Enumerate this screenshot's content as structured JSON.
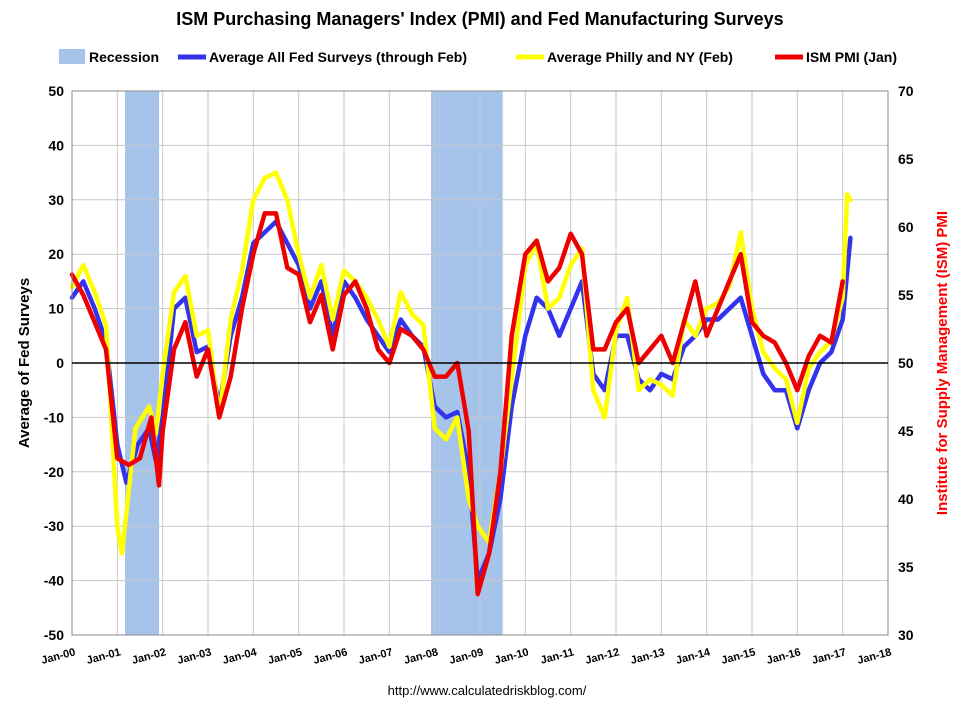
{
  "chart_data": {
    "type": "line",
    "title": "ISM Purchasing Managers' Index (PMI) and Fed Manufacturing Surveys",
    "footer": "http://www.calculatedriskblog.com/",
    "ylabel_left": "Average of Fed Surveys",
    "ylabel_right": "Institute for Supply Management (ISM) PMI",
    "ylim_left": [
      -50,
      50
    ],
    "ylim_right": [
      30,
      70
    ],
    "yticks_left": [
      "50",
      "40",
      "30",
      "20",
      "10",
      "0",
      "-10",
      "-20",
      "-30",
      "-40",
      "-50"
    ],
    "yticks_right": [
      "70",
      "65",
      "60",
      "55",
      "50",
      "45",
      "40",
      "35",
      "30"
    ],
    "xrange_years": [
      2000,
      2018
    ],
    "xticks": [
      "Jan-00",
      "Jan-01",
      "Jan-02",
      "Jan-03",
      "Jan-04",
      "Jan-05",
      "Jan-06",
      "Jan-07",
      "Jan-08",
      "Jan-09",
      "Jan-10",
      "Jan-11",
      "Jan-12",
      "Jan-13",
      "Jan-14",
      "Jan-15",
      "Jan-16",
      "Jan-17",
      "Jan-18"
    ],
    "grid": true,
    "legend": [
      {
        "key": "recession",
        "label": "Recession",
        "color": "#a6c3ea"
      },
      {
        "key": "fed",
        "label": "Average All Fed Surveys (through Feb)",
        "color": "#3333ee"
      },
      {
        "key": "philly",
        "label": "Average Philly and NY (Feb)",
        "color": "#ffff00"
      },
      {
        "key": "ism",
        "label": "ISM PMI (Jan)",
        "color": "#ee0000"
      }
    ],
    "recessions": [
      {
        "start": 2001.17,
        "end": 2001.92
      },
      {
        "start": 2007.92,
        "end": 2009.5
      }
    ],
    "series": [
      {
        "name": "Average All Fed Surveys (through Feb)",
        "axis": "left",
        "color": "#3333ee",
        "points": [
          [
            2000.0,
            12
          ],
          [
            2000.25,
            15
          ],
          [
            2000.5,
            10
          ],
          [
            2000.75,
            4
          ],
          [
            2001.0,
            -15
          ],
          [
            2001.2,
            -22
          ],
          [
            2001.45,
            -15
          ],
          [
            2001.7,
            -12
          ],
          [
            2001.85,
            -18
          ],
          [
            2002.0,
            -10
          ],
          [
            2002.25,
            10
          ],
          [
            2002.5,
            12
          ],
          [
            2002.75,
            2
          ],
          [
            2003.0,
            3
          ],
          [
            2003.25,
            -8
          ],
          [
            2003.5,
            5
          ],
          [
            2003.75,
            12
          ],
          [
            2004.0,
            22
          ],
          [
            2004.25,
            24
          ],
          [
            2004.5,
            26
          ],
          [
            2004.75,
            22
          ],
          [
            2005.0,
            18
          ],
          [
            2005.25,
            10
          ],
          [
            2005.5,
            15
          ],
          [
            2005.75,
            5
          ],
          [
            2006.0,
            15
          ],
          [
            2006.25,
            12
          ],
          [
            2006.5,
            8
          ],
          [
            2006.75,
            5
          ],
          [
            2007.0,
            2
          ],
          [
            2007.25,
            8
          ],
          [
            2007.5,
            5
          ],
          [
            2007.75,
            3
          ],
          [
            2008.0,
            -8
          ],
          [
            2008.25,
            -10
          ],
          [
            2008.5,
            -9
          ],
          [
            2008.75,
            -20
          ],
          [
            2008.95,
            -40
          ],
          [
            2009.2,
            -35
          ],
          [
            2009.45,
            -25
          ],
          [
            2009.7,
            -8
          ],
          [
            2010.0,
            5
          ],
          [
            2010.25,
            12
          ],
          [
            2010.5,
            10
          ],
          [
            2010.75,
            5
          ],
          [
            2011.0,
            10
          ],
          [
            2011.25,
            15
          ],
          [
            2011.5,
            -2
          ],
          [
            2011.75,
            -5
          ],
          [
            2012.0,
            5
          ],
          [
            2012.25,
            5
          ],
          [
            2012.5,
            -3
          ],
          [
            2012.75,
            -5
          ],
          [
            2013.0,
            -2
          ],
          [
            2013.25,
            -3
          ],
          [
            2013.5,
            3
          ],
          [
            2013.75,
            5
          ],
          [
            2014.0,
            8
          ],
          [
            2014.25,
            8
          ],
          [
            2014.5,
            10
          ],
          [
            2014.75,
            12
          ],
          [
            2015.0,
            5
          ],
          [
            2015.25,
            -2
          ],
          [
            2015.5,
            -5
          ],
          [
            2015.75,
            -5
          ],
          [
            2016.0,
            -12
          ],
          [
            2016.25,
            -5
          ],
          [
            2016.5,
            0
          ],
          [
            2016.75,
            2
          ],
          [
            2017.0,
            8
          ],
          [
            2017.17,
            23
          ]
        ]
      },
      {
        "name": "Average Philly and NY (Feb)",
        "axis": "left",
        "color": "#ffff00",
        "points": [
          [
            2000.0,
            14
          ],
          [
            2000.25,
            18
          ],
          [
            2000.5,
            13
          ],
          [
            2000.75,
            7
          ],
          [
            2001.0,
            -30
          ],
          [
            2001.1,
            -35
          ],
          [
            2001.4,
            -12
          ],
          [
            2001.7,
            -8
          ],
          [
            2001.85,
            -13
          ],
          [
            2002.0,
            -2
          ],
          [
            2002.25,
            13
          ],
          [
            2002.5,
            16
          ],
          [
            2002.75,
            5
          ],
          [
            2003.0,
            6
          ],
          [
            2003.25,
            -10
          ],
          [
            2003.5,
            8
          ],
          [
            2003.75,
            17
          ],
          [
            2004.0,
            30
          ],
          [
            2004.25,
            34
          ],
          [
            2004.5,
            35
          ],
          [
            2004.75,
            30
          ],
          [
            2005.0,
            20
          ],
          [
            2005.25,
            12
          ],
          [
            2005.5,
            18
          ],
          [
            2005.75,
            8
          ],
          [
            2006.0,
            17
          ],
          [
            2006.25,
            15
          ],
          [
            2006.5,
            12
          ],
          [
            2006.75,
            8
          ],
          [
            2007.0,
            3
          ],
          [
            2007.25,
            13
          ],
          [
            2007.5,
            9
          ],
          [
            2007.75,
            7
          ],
          [
            2008.0,
            -12
          ],
          [
            2008.25,
            -14
          ],
          [
            2008.5,
            -10
          ],
          [
            2008.75,
            -25
          ],
          [
            2008.95,
            -30
          ],
          [
            2009.2,
            -33
          ],
          [
            2009.45,
            -20
          ],
          [
            2009.7,
            -3
          ],
          [
            2010.0,
            18
          ],
          [
            2010.25,
            22
          ],
          [
            2010.5,
            10
          ],
          [
            2010.75,
            12
          ],
          [
            2011.0,
            18
          ],
          [
            2011.25,
            21
          ],
          [
            2011.5,
            -5
          ],
          [
            2011.75,
            -10
          ],
          [
            2012.0,
            6
          ],
          [
            2012.25,
            12
          ],
          [
            2012.5,
            -5
          ],
          [
            2012.75,
            -3
          ],
          [
            2013.0,
            -4
          ],
          [
            2013.25,
            -6
          ],
          [
            2013.5,
            8
          ],
          [
            2013.75,
            5
          ],
          [
            2014.0,
            10
          ],
          [
            2014.25,
            11
          ],
          [
            2014.5,
            14
          ],
          [
            2014.75,
            24
          ],
          [
            2015.0,
            10
          ],
          [
            2015.25,
            2
          ],
          [
            2015.5,
            -1
          ],
          [
            2015.75,
            -3
          ],
          [
            2016.0,
            -11
          ],
          [
            2016.25,
            -1
          ],
          [
            2016.5,
            2
          ],
          [
            2016.75,
            4
          ],
          [
            2017.0,
            12
          ],
          [
            2017.1,
            31
          ],
          [
            2017.17,
            30
          ]
        ]
      },
      {
        "name": "ISM PMI (Jan)",
        "axis": "right",
        "color": "#ee0000",
        "points": [
          [
            2000.0,
            56.5
          ],
          [
            2000.25,
            55
          ],
          [
            2000.5,
            53
          ],
          [
            2000.75,
            51
          ],
          [
            2001.0,
            43
          ],
          [
            2001.25,
            42.5
          ],
          [
            2001.5,
            43
          ],
          [
            2001.75,
            46
          ],
          [
            2001.92,
            41
          ],
          [
            2002.0,
            45
          ],
          [
            2002.25,
            51
          ],
          [
            2002.5,
            53
          ],
          [
            2002.75,
            49
          ],
          [
            2003.0,
            51
          ],
          [
            2003.25,
            46
          ],
          [
            2003.5,
            49
          ],
          [
            2003.75,
            54
          ],
          [
            2004.0,
            58
          ],
          [
            2004.25,
            61
          ],
          [
            2004.5,
            61
          ],
          [
            2004.75,
            57
          ],
          [
            2005.0,
            56.5
          ],
          [
            2005.25,
            53
          ],
          [
            2005.5,
            55
          ],
          [
            2005.75,
            51
          ],
          [
            2006.0,
            55
          ],
          [
            2006.25,
            56
          ],
          [
            2006.5,
            54
          ],
          [
            2006.75,
            51
          ],
          [
            2007.0,
            50
          ],
          [
            2007.25,
            52.5
          ],
          [
            2007.5,
            52
          ],
          [
            2007.75,
            51
          ],
          [
            2008.0,
            49
          ],
          [
            2008.25,
            49
          ],
          [
            2008.5,
            50
          ],
          [
            2008.75,
            45
          ],
          [
            2008.95,
            33
          ],
          [
            2009.2,
            36
          ],
          [
            2009.45,
            42
          ],
          [
            2009.7,
            52
          ],
          [
            2010.0,
            58
          ],
          [
            2010.25,
            59
          ],
          [
            2010.5,
            56
          ],
          [
            2010.75,
            57
          ],
          [
            2011.0,
            59.5
          ],
          [
            2011.25,
            58
          ],
          [
            2011.5,
            51
          ],
          [
            2011.75,
            51
          ],
          [
            2012.0,
            53
          ],
          [
            2012.25,
            54
          ],
          [
            2012.5,
            50
          ],
          [
            2012.75,
            51
          ],
          [
            2013.0,
            52
          ],
          [
            2013.25,
            50
          ],
          [
            2013.5,
            53
          ],
          [
            2013.75,
            56
          ],
          [
            2014.0,
            52
          ],
          [
            2014.25,
            54
          ],
          [
            2014.5,
            56
          ],
          [
            2014.75,
            58
          ],
          [
            2015.0,
            53
          ],
          [
            2015.25,
            52
          ],
          [
            2015.5,
            51.5
          ],
          [
            2015.75,
            50
          ],
          [
            2016.0,
            48
          ],
          [
            2016.25,
            50.5
          ],
          [
            2016.5,
            52
          ],
          [
            2016.75,
            51.5
          ],
          [
            2017.0,
            56
          ]
        ]
      }
    ]
  }
}
